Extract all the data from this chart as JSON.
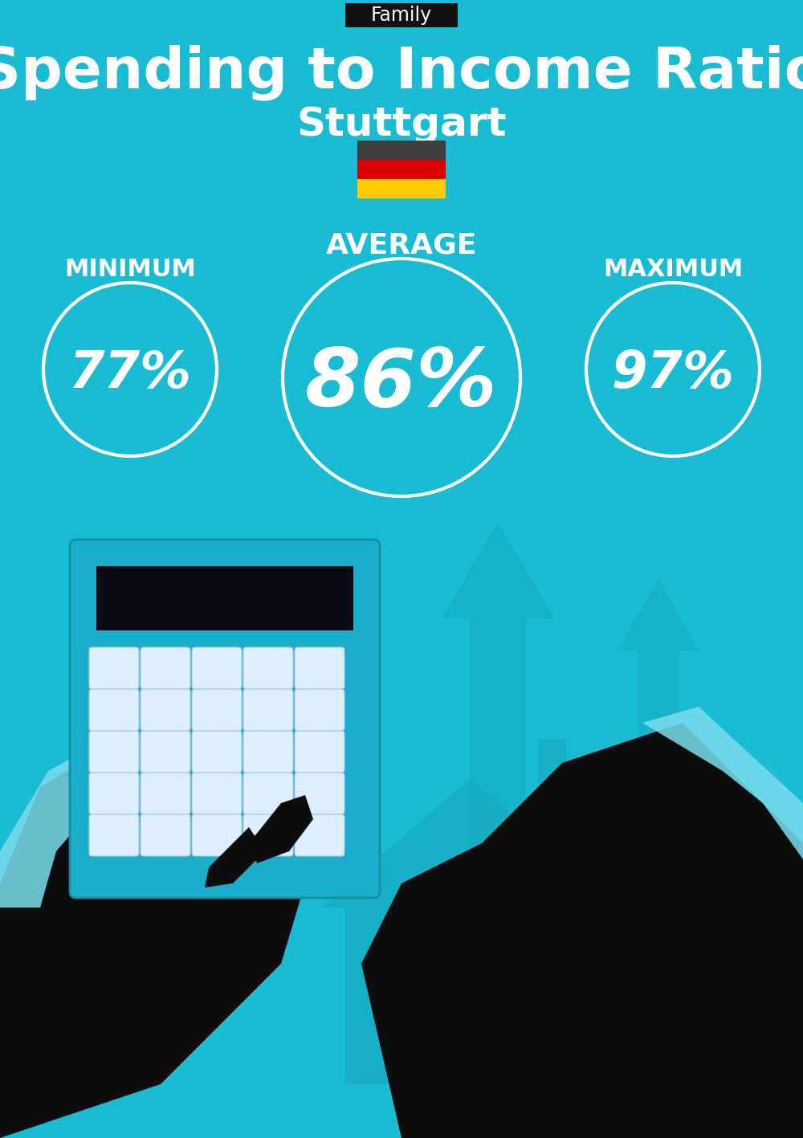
{
  "bg_color": "#1ABCD4",
  "tag_bg": "#111111",
  "tag_text": "Family",
  "tag_text_color": "#FFFFFF",
  "title": "Spending to Income Ratio",
  "subtitle": "Stuttgart",
  "title_color": "#FFFFFF",
  "subtitle_color": "#FFFFFF",
  "min_label": "MINIMUM",
  "avg_label": "AVERAGE",
  "max_label": "MAXIMUM",
  "min_value": "77%",
  "avg_value": "86%",
  "max_value": "97%",
  "label_color": "#FFFFFF",
  "value_color": "#FFFFFF",
  "circle_edge_color": "#FFFFFF",
  "flag_colors": [
    "#3D3D3D",
    "#DD0000",
    "#FFCC00"
  ],
  "fig_width": 10.0,
  "fig_height": 14.17,
  "arrow_color": "#16AABF",
  "house_color": "#16AABF",
  "calc_color": "#1AAECC",
  "dark_color": "#0D0D0D",
  "sleeve_color": "#7ADEEE",
  "money_color": "#1AAEBD",
  "money_text_color": "#E8D080"
}
